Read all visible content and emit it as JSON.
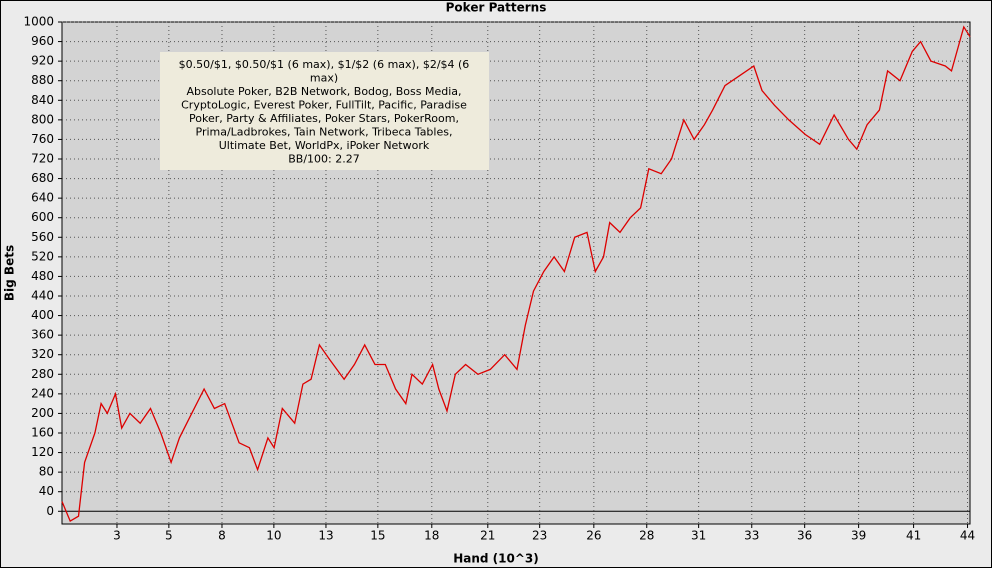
{
  "chart_data": {
    "type": "line",
    "title": "Poker Patterns",
    "xlabel": "Hand (10^3)",
    "ylabel": "Big Bets",
    "annotation": [
      "$0.50/$1, $0.50/$1 (6 max), $1/$2 (6 max), $2/$4 (6",
      "max)",
      "Absolute Poker, B2B Network, Bodog, Boss Media,",
      "CryptoLogic, Everest Poker, FullTilt, Pacific, Paradise",
      "Poker, Party & Affiliates, Poker Stars, PokerRoom,",
      "Prima/Ladbrokes, Tain Network, Tribeca Tables,",
      "Ultimate Bet, WorldPx, iPoker Network",
      "BB/100: 2.27"
    ],
    "xlim": [
      0,
      44.1
    ],
    "ylim": [
      -26,
      1000
    ],
    "grid": true,
    "xticks": [
      {
        "value": 2.67,
        "label": "3"
      },
      {
        "value": 5.19,
        "label": "5"
      },
      {
        "value": 7.77,
        "label": "8"
      },
      {
        "value": 10.29,
        "label": "10"
      },
      {
        "value": 12.82,
        "label": "13"
      },
      {
        "value": 15.34,
        "label": "15"
      },
      {
        "value": 17.96,
        "label": "18"
      },
      {
        "value": 20.68,
        "label": "21"
      },
      {
        "value": 23.2,
        "label": "23"
      },
      {
        "value": 25.83,
        "label": "26"
      },
      {
        "value": 28.4,
        "label": "28"
      },
      {
        "value": 30.92,
        "label": "31"
      },
      {
        "value": 33.5,
        "label": "33"
      },
      {
        "value": 36.07,
        "label": "36"
      },
      {
        "value": 38.69,
        "label": "39"
      },
      {
        "value": 41.36,
        "label": "41"
      },
      {
        "value": 43.98,
        "label": "44"
      }
    ],
    "yticks": [
      0,
      40,
      80,
      120,
      160,
      200,
      240,
      280,
      320,
      360,
      400,
      440,
      480,
      520,
      560,
      600,
      640,
      680,
      720,
      760,
      800,
      840,
      880,
      920,
      960,
      1000
    ],
    "color": "#dd0000",
    "x": [
      0,
      0.4,
      0.8,
      1.1,
      1.6,
      1.9,
      2.2,
      2.6,
      2.9,
      3.3,
      3.8,
      4.3,
      4.8,
      5.3,
      5.7,
      6.3,
      6.9,
      7.4,
      7.9,
      8.6,
      9.1,
      9.5,
      10.0,
      10.3,
      10.7,
      11.3,
      11.7,
      12.1,
      12.5,
      13.0,
      13.7,
      14.2,
      14.7,
      15.2,
      15.7,
      16.2,
      16.7,
      17.0,
      17.5,
      18.0,
      18.3,
      18.7,
      19.1,
      19.6,
      20.2,
      20.8,
      21.5,
      22.1,
      22.5,
      22.9,
      23.4,
      23.9,
      24.4,
      24.9,
      25.5,
      25.9,
      26.3,
      26.6,
      27.1,
      27.6,
      28.1,
      28.5,
      29.1,
      29.6,
      30.2,
      30.7,
      31.2,
      31.6,
      32.2,
      32.9,
      33.6,
      34.0,
      34.6,
      35.3,
      36.1,
      36.8,
      37.5,
      38.2,
      38.6,
      39.1,
      39.7,
      40.1,
      40.7,
      41.3,
      41.7,
      42.2,
      42.9,
      43.2,
      43.8,
      44.1
    ],
    "values": [
      20,
      -20,
      -10,
      100,
      160,
      220,
      200,
      240,
      170,
      200,
      180,
      210,
      160,
      100,
      150,
      200,
      250,
      210,
      220,
      140,
      130,
      85,
      150,
      130,
      210,
      180,
      260,
      270,
      340,
      310,
      270,
      300,
      340,
      300,
      300,
      250,
      220,
      280,
      260,
      300,
      250,
      205,
      280,
      300,
      280,
      290,
      320,
      290,
      380,
      450,
      490,
      520,
      490,
      560,
      570,
      490,
      520,
      590,
      570,
      600,
      620,
      700,
      690,
      720,
      800,
      760,
      790,
      820,
      870,
      890,
      910,
      860,
      830,
      800,
      770,
      750,
      810,
      760,
      740,
      790,
      820,
      900,
      880,
      940,
      960,
      920,
      910,
      900,
      990,
      970
    ]
  }
}
